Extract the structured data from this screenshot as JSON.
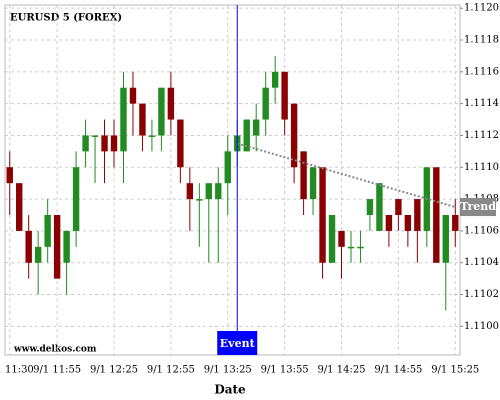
{
  "chart_data": {
    "type": "candlestick",
    "title": "EURUSD 5 (FOREX)",
    "x_label": "Date",
    "watermark": "www.delkos.com",
    "categories": [
      "9/1 11:30",
      null,
      null,
      null,
      null,
      "9/1 11:55",
      null,
      null,
      null,
      null,
      null,
      "9/1 12:25",
      null,
      null,
      null,
      null,
      null,
      "9/1 12:55",
      null,
      null,
      null,
      null,
      null,
      "9/1 13:25",
      null,
      null,
      null,
      null,
      null,
      "9/1 13:55",
      null,
      null,
      null,
      null,
      null,
      "9/1 14:25",
      null,
      null,
      null,
      null,
      null,
      "9/1 14:55",
      null,
      null,
      null,
      null,
      null,
      "9/1 15:25"
    ],
    "open": [
      1.111,
      1.1109,
      1.1106,
      1.1104,
      1.1105,
      1.1107,
      1.1104,
      1.1106,
      1.1111,
      1.1112,
      1.1112,
      1.1112,
      1.1111,
      1.1115,
      1.1114,
      1.1112,
      1.1112,
      1.1115,
      1.1113,
      1.1109,
      1.1108,
      1.1108,
      1.1108,
      1.1109,
      1.1111,
      1.1111,
      1.1112,
      1.1113,
      1.1115,
      1.1116,
      1.1114,
      1.1111,
      1.1108,
      1.111,
      1.1104,
      1.1106,
      1.1105,
      1.1105,
      1.1107,
      1.1106,
      1.1107,
      1.1108,
      1.1107,
      1.1108,
      1.1106,
      1.111,
      1.1104,
      1.1107
    ],
    "high": [
      1.1111,
      1.1109,
      1.1107,
      1.1106,
      1.1108,
      1.1107,
      1.1106,
      1.1111,
      1.1113,
      1.1112,
      1.1113,
      1.1113,
      1.1116,
      1.1116,
      1.1114,
      1.1113,
      1.1115,
      1.1116,
      1.1113,
      1.111,
      1.1109,
      1.1109,
      1.111,
      1.1112,
      1.1113,
      1.1113,
      1.1114,
      1.1116,
      1.1117,
      1.1116,
      1.1114,
      1.1111,
      1.111,
      1.111,
      1.1107,
      1.1106,
      1.1106,
      1.1106,
      1.1108,
      1.1109,
      1.1107,
      1.1108,
      1.1107,
      1.1108,
      1.111,
      1.111,
      1.1107,
      1.1108
    ],
    "low": [
      1.1107,
      1.1106,
      1.1103,
      1.1102,
      1.1104,
      1.1103,
      1.1102,
      1.1105,
      1.111,
      1.1109,
      1.1109,
      1.111,
      1.1109,
      1.1112,
      1.1111,
      1.1111,
      1.1111,
      1.1112,
      1.1109,
      1.1106,
      1.1105,
      1.1104,
      1.1104,
      1.1107,
      1.111,
      1.1111,
      1.1111,
      1.1112,
      1.1114,
      1.1112,
      1.1109,
      1.1107,
      1.1107,
      1.1103,
      1.1104,
      1.1103,
      1.1104,
      1.1104,
      1.1106,
      1.1106,
      1.1105,
      1.1106,
      1.1105,
      1.1104,
      1.1105,
      1.1104,
      1.1101,
      1.1105
    ],
    "close": [
      1.1109,
      1.1106,
      1.1104,
      1.1105,
      1.1107,
      1.1103,
      1.1106,
      1.111,
      1.1112,
      1.1112,
      1.1111,
      1.1111,
      1.1115,
      1.1114,
      1.1112,
      1.1112,
      1.1115,
      1.1113,
      1.111,
      1.1108,
      1.1108,
      1.1109,
      1.1109,
      1.1111,
      1.1112,
      1.1113,
      1.1113,
      1.1115,
      1.1116,
      1.1113,
      1.111,
      1.1108,
      1.111,
      1.1104,
      1.1107,
      1.1105,
      1.1105,
      1.1105,
      1.1108,
      1.1109,
      1.1106,
      1.1107,
      1.1106,
      1.1106,
      1.111,
      1.1104,
      1.1107,
      1.1106
    ],
    "up_color": "#228b22",
    "down_color": "#8b0000",
    "ylim": [
      1.10982,
      1.11202
    ],
    "yticks": [
      {
        "value": 1.11,
        "label": "1.1100"
      },
      {
        "value": 1.1102,
        "label": "1.1102"
      },
      {
        "value": 1.1104,
        "label": "1.1104"
      },
      {
        "value": 1.1106,
        "label": "1.1106"
      },
      {
        "value": 1.1108,
        "label": "1.1108"
      },
      {
        "value": 1.111,
        "label": "1.1110"
      },
      {
        "value": 1.1112,
        "label": "1.1112"
      },
      {
        "value": 1.1114,
        "label": "1.1114"
      },
      {
        "value": 1.1116,
        "label": "1.1116"
      },
      {
        "value": 1.1118,
        "label": "1.1118"
      },
      {
        "value": 1.112,
        "label": "1.1120"
      }
    ],
    "grid": true,
    "event": {
      "index": 24,
      "label": "Event",
      "color": "#0000ff"
    },
    "trend": {
      "label": "Trend",
      "x": [
        24,
        47
      ],
      "values": [
        1.11115,
        1.11075
      ],
      "color": "#888888"
    }
  }
}
